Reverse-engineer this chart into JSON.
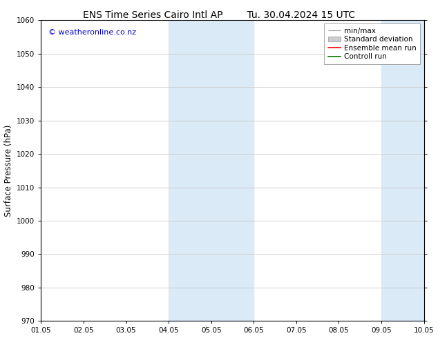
{
  "title_left": "ENS Time Series Cairo Intl AP",
  "title_right": "Tu. 30.04.2024 15 UTC",
  "ylabel": "Surface Pressure (hPa)",
  "ylim": [
    970,
    1060
  ],
  "yticks": [
    970,
    980,
    990,
    1000,
    1010,
    1020,
    1030,
    1040,
    1050,
    1060
  ],
  "xtick_labels": [
    "01.05",
    "02.05",
    "03.05",
    "04.05",
    "05.05",
    "06.05",
    "07.05",
    "08.05",
    "09.05",
    "10.05"
  ],
  "xlim": [
    0,
    9
  ],
  "watermark": "© weatheronline.co.nz",
  "watermark_color": "#0000cc",
  "shaded_bands": [
    {
      "xmin": 3.0,
      "xmax": 5.0
    },
    {
      "xmin": 8.0,
      "xmax": 9.0
    }
  ],
  "shade_color": "#daeaf7",
  "background_color": "#ffffff",
  "grid_color": "#c8c8c8",
  "tick_fontsize": 7.5,
  "title_fontsize": 10,
  "legend_fontsize": 7.5,
  "ylabel_fontsize": 8.5,
  "legend_items": [
    {
      "label": "min/max",
      "color": "#999999"
    },
    {
      "label": "Standard deviation",
      "color": "#cccccc"
    },
    {
      "label": "Ensemble mean run",
      "color": "#ff0000"
    },
    {
      "label": "Controll run",
      "color": "#007700"
    }
  ]
}
